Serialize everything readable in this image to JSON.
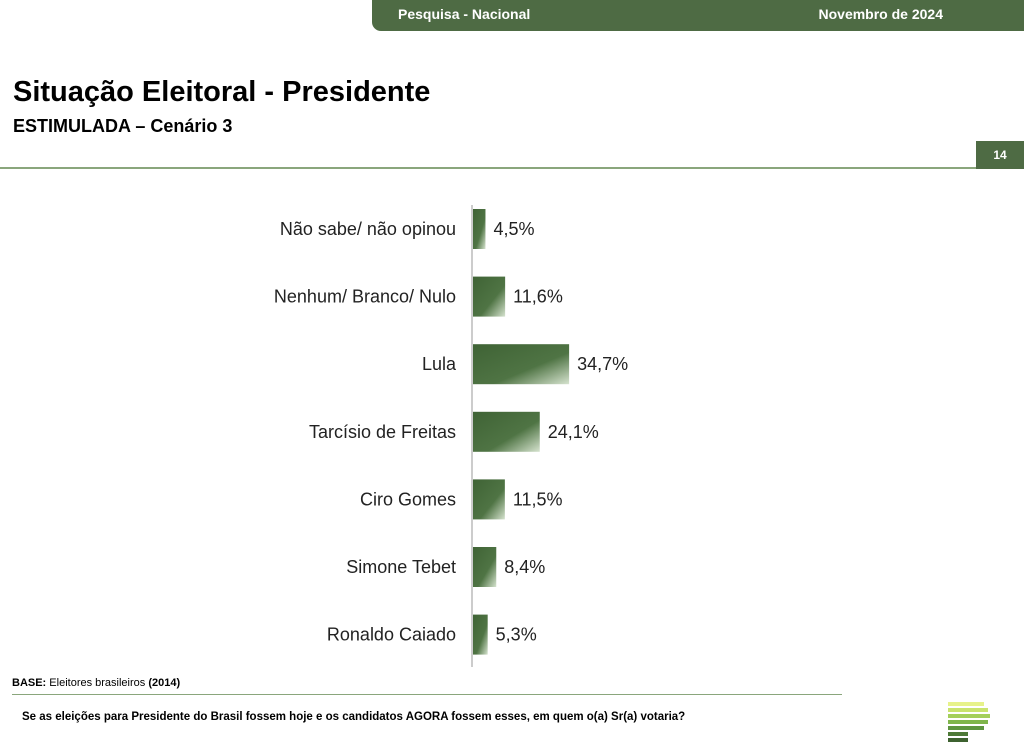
{
  "header": {
    "survey_label": "Pesquisa - Nacional",
    "date_label": "Novembro de 2024"
  },
  "title": "Situação Eleitoral - Presidente",
  "subtitle": "ESTIMULADA – Cenário 3",
  "page_number": "14",
  "footer": {
    "base_label": "BASE:",
    "base_text": "Eleitores brasileiros",
    "base_count": "(2014)",
    "question": "Se as eleições para Presidente do Brasil fossem hoje e os candidatos AGORA fossem esses, em quem o(a) Sr(a) votaria?"
  },
  "colors": {
    "brand_green": "#4e6b44",
    "bar_dark": "#3f6335",
    "bar_light": "#d6e3cf"
  },
  "chart_data": {
    "type": "bar",
    "orientation": "horizontal",
    "categories": [
      "Não sabe/ não opinou",
      "Nenhum/ Branco/ Nulo",
      "Lula",
      "Tarcísio de Freitas",
      "Ciro Gomes",
      "Simone Tebet",
      "Ronaldo Caiado"
    ],
    "values": [
      4.5,
      11.6,
      34.7,
      24.1,
      11.5,
      8.4,
      5.3
    ],
    "value_labels": [
      "4,5%",
      "11,6%",
      "34,7%",
      "24,1%",
      "11,5%",
      "8,4%",
      "5,3%"
    ],
    "xlim": [
      0,
      100
    ]
  }
}
